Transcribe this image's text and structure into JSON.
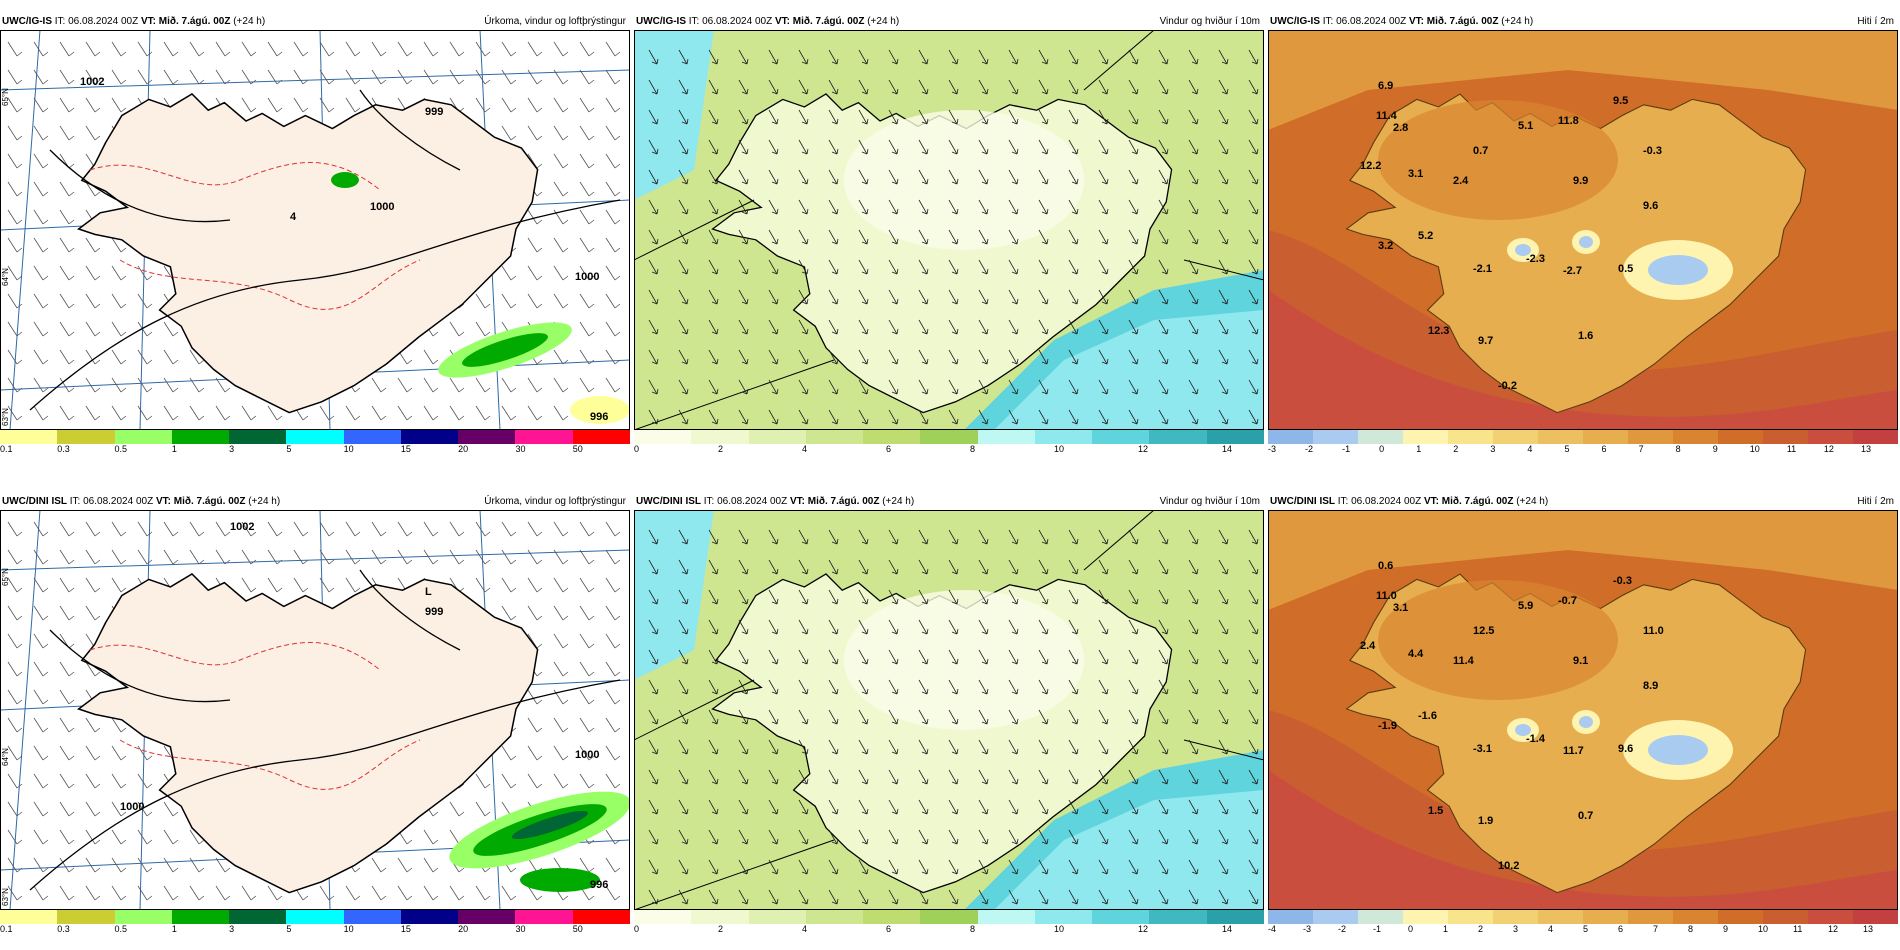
{
  "colors": {
    "precip_bar": [
      "#ffff99",
      "#cccc33",
      "#99ff66",
      "#00aa00",
      "#006633",
      "#00ffff",
      "#3366ff",
      "#000088",
      "#660066",
      "#ff1493",
      "#ff0000"
    ],
    "wind_bar": [
      "#fbfde8",
      "#f0f8d0",
      "#e0f0b0",
      "#cfe690",
      "#bedc70",
      "#9ed05a",
      "#bff7f2",
      "#8fe8ee",
      "#60d4dd",
      "#3fb8c0",
      "#2aa0a8"
    ],
    "temp_bar": [
      "#8db7e8",
      "#aacbf0",
      "#d0e8d8",
      "#fff3b0",
      "#f8e48a",
      "#f2d074",
      "#ecc060",
      "#e6ae4e",
      "#e0983e",
      "#d98430",
      "#d06d28",
      "#c95e30",
      "#c94e3e",
      "#c24040"
    ]
  },
  "icons": [
    "wind-barb-icon",
    "wind-arrow-icon"
  ],
  "panels": [
    {
      "id": "top-precip",
      "source": "UWC/IG-IS",
      "it": "IT: 06.08.2024 00Z",
      "vt_label": "VT:",
      "vt": "Mið. 7.ágú. 00Z",
      "lead": "(+24 h)",
      "title": "Úrkoma, vindur og loftþrýstingur",
      "ticks": [
        "0.1",
        "0.3",
        "0.5",
        "1",
        "3",
        "5",
        "10",
        "15",
        "20",
        "30",
        "50"
      ],
      "labels": [
        "999",
        "1000",
        "1000",
        "1002",
        "996",
        "4"
      ],
      "grid_labels": [
        "65°N",
        "64°N",
        "63°N"
      ]
    },
    {
      "id": "top-wind",
      "source": "UWC/IG-IS",
      "it": "IT: 06.08.2024 00Z",
      "vt_label": "VT:",
      "vt": "Mið. 7.ágú. 00Z",
      "lead": "(+24 h)",
      "title": "Vindur og hviður í 10m",
      "ticks": [
        "0",
        "2",
        "4",
        "6",
        "8",
        "10",
        "12",
        "14"
      ]
    },
    {
      "id": "top-temp",
      "source": "UWC/IG-IS",
      "it": "IT: 06.08.2024 00Z",
      "vt_label": "VT:",
      "vt": "Mið. 7.ágú. 00Z",
      "lead": "(+24 h)",
      "title": "Hiti í 2m",
      "ticks": [
        "-3",
        "-2",
        "-1",
        "0",
        "1",
        "2",
        "3",
        "4",
        "5",
        "6",
        "7",
        "8",
        "9",
        "10",
        "11",
        "12",
        "13"
      ],
      "values": [
        "6.9",
        "11.4",
        "2.8",
        "12.2",
        "3.1",
        "2.4",
        "0.7",
        "5.1",
        "11.8",
        "9.5",
        "-0.3",
        "9.9",
        "9.6",
        "5.2",
        "3.2",
        "-2.1",
        "-2.3",
        "-2.7",
        "0.5",
        "12.3",
        "9.7",
        "1.6",
        "-0.2"
      ]
    },
    {
      "id": "bot-precip",
      "source": "UWC/DINI ISL",
      "it": "IT: 06.08.2024 00Z",
      "vt_label": "VT:",
      "vt": "Mið. 7.ágú. 00Z",
      "lead": "(+24 h)",
      "title": "Úrkoma, vindur og loftþrýstingur",
      "ticks": [
        "0.1",
        "0.3",
        "0.5",
        "1",
        "3",
        "5",
        "10",
        "15",
        "20",
        "30",
        "50"
      ],
      "labels": [
        "L",
        "999",
        "1000",
        "1000",
        "1002",
        "996"
      ],
      "grid_labels": [
        "65°N",
        "64°N",
        "63°N"
      ]
    },
    {
      "id": "bot-wind",
      "source": "UWC/DINI ISL",
      "it": "IT: 06.08.2024 00Z",
      "vt_label": "VT:",
      "vt": "Mið. 7.ágú. 00Z",
      "lead": "(+24 h)",
      "title": "Vindur og hviður í 10m",
      "ticks": [
        "0",
        "2",
        "4",
        "6",
        "8",
        "10",
        "12",
        "14"
      ]
    },
    {
      "id": "bot-temp",
      "source": "UWC/DINI ISL",
      "it": "IT: 06.08.2024 00Z",
      "vt_label": "VT:",
      "vt": "Mið. 7.ágú. 00Z",
      "lead": "(+24 h)",
      "title": "Hiti í 2m",
      "ticks": [
        "-4",
        "-3",
        "-2",
        "-1",
        "0",
        "1",
        "2",
        "3",
        "4",
        "5",
        "6",
        "7",
        "8",
        "9",
        "10",
        "11",
        "12",
        "13"
      ],
      "values": [
        "0.6",
        "11.0",
        "3.1",
        "2.4",
        "4.4",
        "11.4",
        "12.5",
        "5.9",
        "-0.7",
        "-0.3",
        "11.0",
        "9.1",
        "8.9",
        "-1.6",
        "-1.9",
        "-3.1",
        "-1.4",
        "11.7",
        "9.6",
        "1.5",
        "1.9",
        "0.7",
        "10.2"
      ]
    }
  ]
}
